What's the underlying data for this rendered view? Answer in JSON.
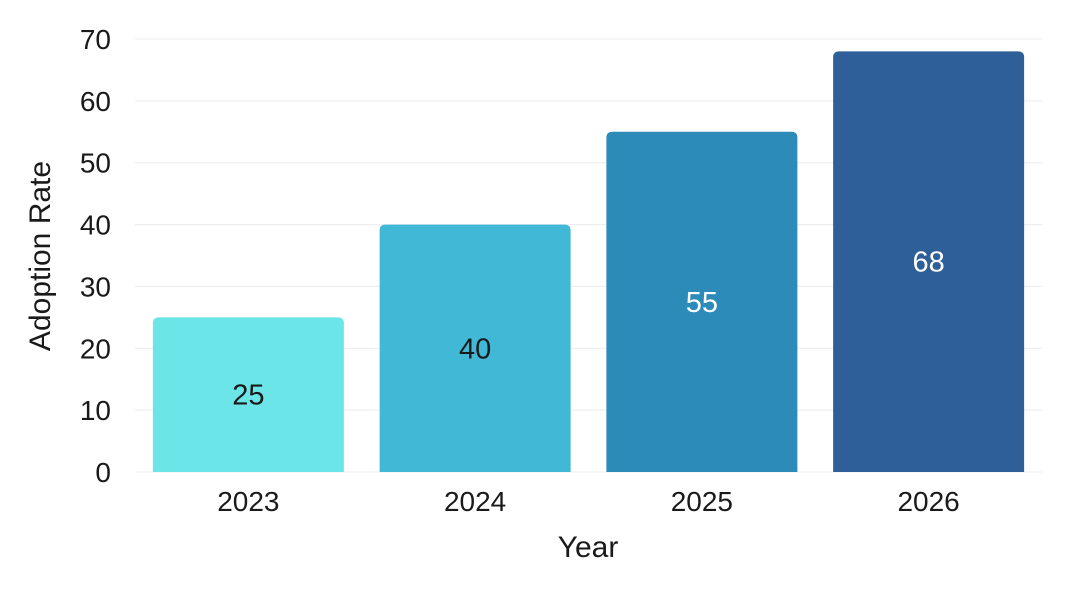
{
  "chart_data": {
    "type": "bar",
    "title": "",
    "xlabel": "Year",
    "ylabel": "Adoption Rate",
    "categories": [
      "2023",
      "2024",
      "2025",
      "2026"
    ],
    "values": [
      25,
      40,
      55,
      68
    ],
    "value_labels": [
      "25",
      "40",
      "55",
      "68"
    ],
    "ylim": [
      0,
      70
    ],
    "yticks": [
      0,
      10,
      20,
      30,
      40,
      50,
      60,
      70
    ],
    "ytick_labels": [
      "0",
      "10",
      "20",
      "30",
      "40",
      "50",
      "60",
      "70"
    ],
    "grid": true,
    "legend": "none",
    "colors": [
      "#6ce5e8",
      "#41b8d5",
      "#2d8bba",
      "#2f5f98"
    ],
    "label_colors": [
      "#1a1a1a",
      "#1a1a1a",
      "#ffffff",
      "#ffffff"
    ],
    "grid_color": "#ececec"
  }
}
